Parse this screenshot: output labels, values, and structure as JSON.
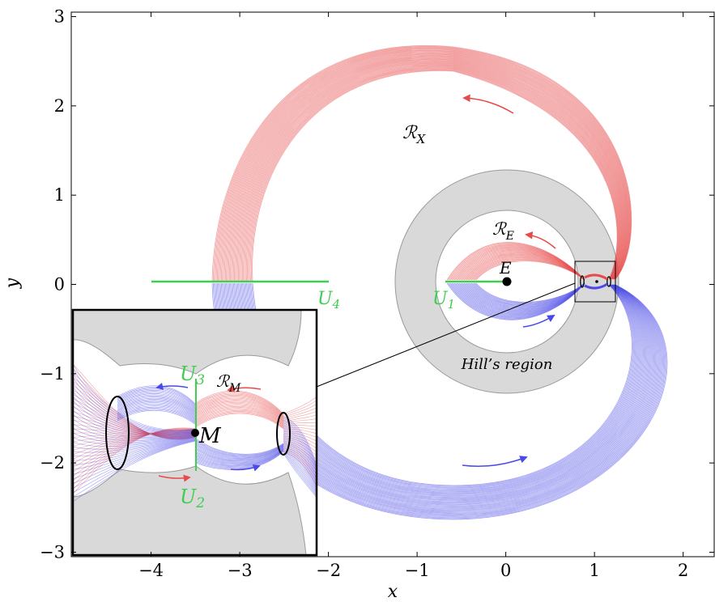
{
  "axes": {
    "xlabel": "x",
    "ylabel": "y",
    "xlim": [
      -4.9,
      2.35
    ],
    "ylim": [
      -3.05,
      3.05
    ],
    "xticks": [
      -4,
      -3,
      -2,
      -1,
      0,
      1,
      2
    ],
    "yticks": [
      -3,
      -2,
      -1,
      0,
      1,
      2,
      3
    ],
    "xtick_labels": [
      "−4",
      "−3",
      "−2",
      "−1",
      "0",
      "1",
      "2"
    ],
    "ytick_labels": [
      "−3",
      "−2",
      "−1",
      "0",
      "1",
      "2",
      "3"
    ]
  },
  "labels": {
    "region_x": "ℛ",
    "region_x_sub": "X",
    "region_e": "ℛ",
    "region_e_sub": "E",
    "region_m": "ℛ",
    "region_m_sub": "M",
    "earth": "E",
    "moon": "M",
    "u1": "U",
    "u1_sub": "1",
    "u2": "U",
    "u2_sub": "2",
    "u3": "U",
    "u3_sub": "3",
    "u4": "U",
    "u4_sub": "4",
    "hill": "Hill’s region"
  },
  "colors": {
    "stable": "#e84a4a",
    "unstable": "#4a4ae8",
    "section": "#3fce4f",
    "forbidden": "#d9d9d9"
  },
  "chart_data": {
    "type": "diagram",
    "forbidden_annulus": {
      "center": [
        0,
        0
      ],
      "inner_radius": 0.8,
      "outer_radius": 1.25
    },
    "earth": [
      0,
      0
    ],
    "moon": [
      0.988,
      0
    ],
    "sections": {
      "U1": {
        "from": [
          -0.7,
          0
        ],
        "to": [
          -0.05,
          0
        ]
      },
      "U4": {
        "from": [
          -4.0,
          0
        ],
        "to": [
          -2.0,
          0
        ]
      }
    },
    "zoom_box": {
      "x": [
        0.75,
        1.22
      ],
      "y": [
        -0.23,
        0.23
      ]
    }
  }
}
